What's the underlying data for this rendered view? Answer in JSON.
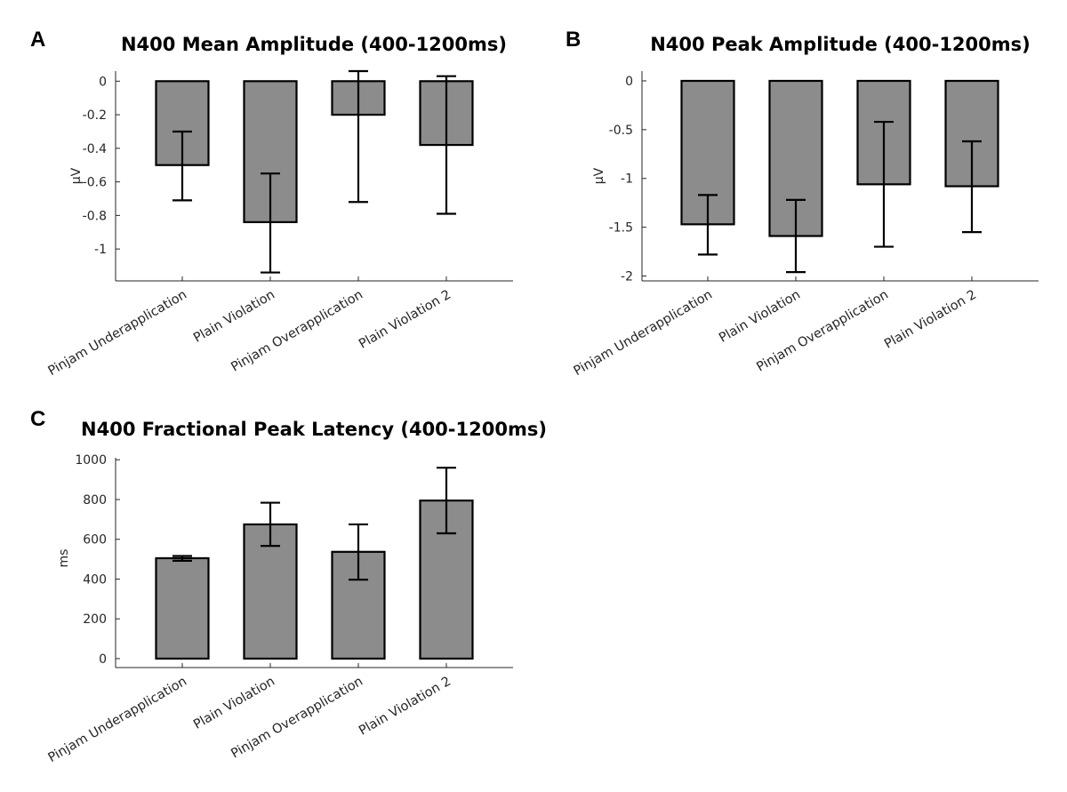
{
  "chart_data": [
    {
      "panel": "A",
      "type": "bar",
      "title": "N400 Mean Amplitude (400-1200ms)",
      "ylabel": "μV",
      "categories": [
        "Pinjam Underapplication",
        "Plain Violation",
        "Pinjam Overapplication",
        "Plain Violation 2"
      ],
      "values": [
        -0.5,
        -0.84,
        -0.2,
        -0.38
      ],
      "err_low": [
        -0.71,
        -1.14,
        -0.72,
        -0.79
      ],
      "err_high": [
        -0.3,
        -0.55,
        0.06,
        0.03
      ],
      "ylim": [
        -1.19,
        0.06
      ],
      "yticks": [
        0,
        -0.2,
        -0.4,
        -0.6,
        -0.8,
        -1
      ],
      "ytick_labels": [
        "0",
        "-0.2",
        "-0.4",
        "-0.6",
        "-0.8",
        "-1"
      ]
    },
    {
      "panel": "B",
      "type": "bar",
      "title": "N400 Peak Amplitude (400-1200ms)",
      "ylabel": "μV",
      "categories": [
        "Pinjam Underapplication",
        "Plain Violation",
        "Pinjam Overapplication",
        "Plain Violation 2"
      ],
      "values": [
        -1.47,
        -1.59,
        -1.06,
        -1.08
      ],
      "err_low": [
        -1.78,
        -1.96,
        -1.7,
        -1.55
      ],
      "err_high": [
        -1.17,
        -1.22,
        -0.42,
        -0.62
      ],
      "ylim": [
        -2.05,
        0.1
      ],
      "yticks": [
        0,
        -0.5,
        -1,
        -1.5,
        -2
      ],
      "ytick_labels": [
        "0",
        "-0.5",
        "-1",
        "-1.5",
        "-2"
      ]
    },
    {
      "panel": "C",
      "type": "bar",
      "title": "N400 Fractional Peak Latency (400-1200ms)",
      "ylabel": "ms",
      "categories": [
        "Pinjam Underapplication",
        "Plain Violation",
        "Pinjam Overapplication",
        "Plain Violation 2"
      ],
      "values": [
        505,
        675,
        537,
        795
      ],
      "err_low": [
        492,
        567,
        397,
        630
      ],
      "err_high": [
        516,
        784,
        675,
        960
      ],
      "ylim": [
        -45,
        1010
      ],
      "yticks": [
        0,
        200,
        400,
        600,
        800,
        1000
      ],
      "ytick_labels": [
        "0",
        "200",
        "400",
        "600",
        "800",
        "1000"
      ]
    }
  ]
}
